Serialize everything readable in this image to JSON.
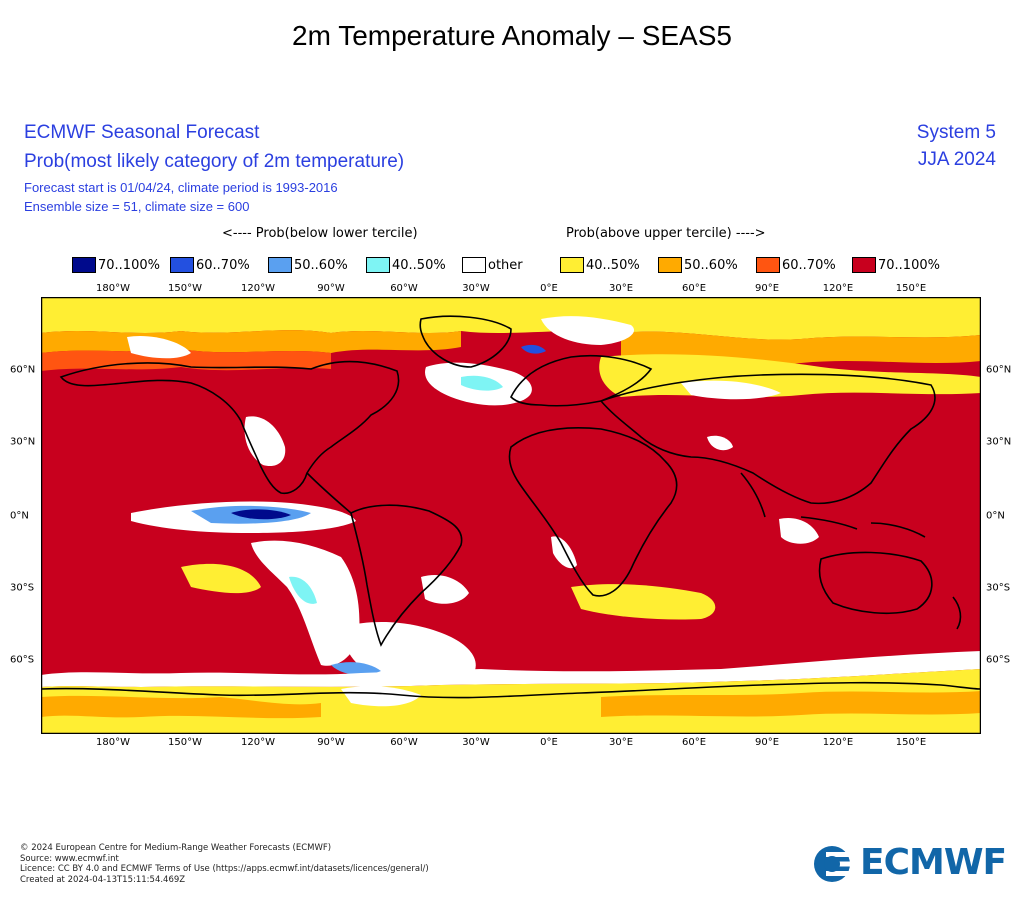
{
  "page_title": "2m Temperature Anomaly – SEAS5",
  "header": {
    "title_1": "ECMWF Seasonal Forecast",
    "title_2": "Prob(most likely category of 2m temperature)",
    "info_1": "Forecast start is 01/04/24, climate period is 1993-2016",
    "info_2": "Ensemble size = 51, climate size = 600",
    "system": "System 5",
    "period": "JJA 2024"
  },
  "legend": {
    "below_title": "<---- Prob(below lower tercile)",
    "above_title": "Prob(above upper tercile) ---->",
    "items": [
      {
        "label": "70..100%",
        "color": "#000a8c"
      },
      {
        "label": "60..70%",
        "color": "#2350e0"
      },
      {
        "label": "50..60%",
        "color": "#5aa0f0"
      },
      {
        "label": "40..50%",
        "color": "#7ef4f4"
      },
      {
        "label": "other",
        "color": "#ffffff"
      },
      {
        "label": "40..50%",
        "color": "#ffee33"
      },
      {
        "label": "50..60%",
        "color": "#ffaa00"
      },
      {
        "label": "60..70%",
        "color": "#ff5511"
      },
      {
        "label": "70..100%",
        "color": "#c8001e"
      }
    ]
  },
  "map": {
    "lon_labels": [
      "180°W",
      "150°W",
      "120°W",
      "90°W",
      "60°W",
      "30°W",
      "0°E",
      "30°E",
      "60°E",
      "90°E",
      "120°E",
      "150°E"
    ],
    "lat_labels": [
      "60°N",
      "30°N",
      "0°N",
      "30°S",
      "60°S"
    ]
  },
  "footer": {
    "line_1": "© 2024 European Centre for Medium-Range Weather Forecasts (ECMWF)",
    "line_2": "Source: www.ecmwf.int",
    "line_3": "Licence: CC BY 4.0 and ECMWF Terms of Use (https://apps.ecmwf.int/datasets/licences/general/)",
    "line_4": "Created at 2024-04-13T15:11:54.469Z"
  },
  "logo": {
    "text": "ECMWF"
  }
}
